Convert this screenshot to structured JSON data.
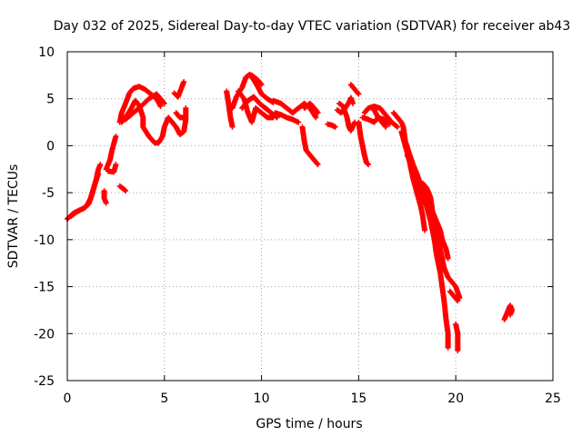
{
  "chart_data": {
    "type": "scatter",
    "title": "Day 032 of 2025, Sidereal Day-to-day VTEC variation (SDTVAR) for receiver ab43",
    "xlabel": "GPS time / hours",
    "ylabel": "SDTVAR / TECUs",
    "xlim": [
      0,
      25
    ],
    "ylim": [
      -25,
      10
    ],
    "xticks": [
      0,
      5,
      10,
      15,
      20,
      25
    ],
    "yticks": [
      10,
      5,
      0,
      -5,
      -10,
      -15,
      -20,
      -25
    ],
    "grid": true,
    "marker": "+",
    "color": "#ff0000",
    "series": [
      {
        "name": "ab43",
        "tracks": [
          [
            [
              0.0,
              -7.8
            ],
            [
              0.3,
              -7.2
            ],
            [
              0.6,
              -6.9
            ],
            [
              0.9,
              -6.6
            ],
            [
              1.1,
              -6.2
            ],
            [
              1.3,
              -5.0
            ],
            [
              1.5,
              -3.5
            ],
            [
              1.6,
              -2.5
            ],
            [
              1.7,
              -2.0
            ]
          ],
          [
            [
              0.2,
              -7.5
            ],
            [
              0.5,
              -7.0
            ],
            [
              0.8,
              -6.7
            ],
            [
              1.0,
              -6.4
            ],
            [
              1.2,
              -5.6
            ],
            [
              1.4,
              -4.2
            ],
            [
              1.6,
              -3.0
            ]
          ],
          [
            [
              1.9,
              -4.8
            ],
            [
              1.9,
              -5.6
            ],
            [
              2.0,
              -6.1
            ]
          ],
          [
            [
              2.0,
              -2.5
            ],
            [
              2.2,
              -1.5
            ],
            [
              2.3,
              -0.5
            ],
            [
              2.5,
              1.0
            ]
          ],
          [
            [
              2.1,
              -2.7
            ],
            [
              2.4,
              -2.8
            ],
            [
              2.5,
              -2.0
            ]
          ],
          [
            [
              2.7,
              -4.3
            ],
            [
              2.9,
              -4.6
            ],
            [
              3.0,
              -4.8
            ]
          ],
          [
            [
              2.7,
              2.5
            ],
            [
              2.8,
              3.5
            ],
            [
              3.0,
              4.5
            ],
            [
              3.2,
              5.6
            ],
            [
              3.4,
              6.1
            ],
            [
              3.7,
              6.3
            ],
            [
              4.0,
              6.0
            ],
            [
              4.3,
              5.5
            ],
            [
              4.6,
              5.0
            ],
            [
              4.8,
              4.2
            ]
          ],
          [
            [
              2.8,
              2.5
            ],
            [
              3.0,
              3.0
            ],
            [
              3.3,
              4.0
            ],
            [
              3.5,
              4.8
            ],
            [
              3.7,
              4.3
            ],
            [
              3.9,
              3.0
            ],
            [
              3.9,
              2.0
            ],
            [
              4.2,
              1.0
            ],
            [
              4.5,
              0.3
            ],
            [
              4.7,
              0.3
            ],
            [
              4.9,
              1.0
            ],
            [
              5.0,
              2.0
            ],
            [
              5.2,
              3.0
            ],
            [
              5.4,
              2.5
            ]
          ],
          [
            [
              3.0,
              2.8
            ],
            [
              3.4,
              3.5
            ],
            [
              3.8,
              4.2
            ],
            [
              4.2,
              5.0
            ],
            [
              4.6,
              5.5
            ],
            [
              5.0,
              4.5
            ]
          ],
          [
            [
              5.5,
              5.6
            ],
            [
              5.7,
              5.2
            ],
            [
              6.0,
              6.8
            ]
          ],
          [
            [
              5.4,
              2.5
            ],
            [
              5.6,
              2.0
            ],
            [
              5.8,
              1.2
            ],
            [
              6.0,
              1.5
            ],
            [
              6.1,
              2.8
            ],
            [
              6.1,
              4.0
            ]
          ],
          [
            [
              5.6,
              3.5
            ],
            [
              5.8,
              3.0
            ],
            [
              6.0,
              3.0
            ]
          ],
          [
            [
              8.2,
              5.8
            ],
            [
              8.3,
              4.5
            ],
            [
              8.4,
              3.0
            ],
            [
              8.5,
              2.0
            ]
          ],
          [
            [
              8.5,
              4.0
            ],
            [
              8.7,
              5.2
            ],
            [
              9.0,
              6.2
            ],
            [
              9.2,
              7.3
            ],
            [
              9.4,
              7.6
            ],
            [
              9.6,
              7.0
            ],
            [
              9.8,
              6.3
            ],
            [
              10.0,
              5.5
            ],
            [
              10.3,
              5.0
            ],
            [
              10.6,
              4.6
            ]
          ],
          [
            [
              8.8,
              5.8
            ],
            [
              9.1,
              5.0
            ],
            [
              9.3,
              3.5
            ],
            [
              9.5,
              2.5
            ],
            [
              9.7,
              4.0
            ],
            [
              10.0,
              3.5
            ],
            [
              10.3,
              3.0
            ],
            [
              10.6,
              3.0
            ]
          ],
          [
            [
              9.0,
              4.0
            ],
            [
              9.3,
              4.8
            ],
            [
              9.6,
              5.2
            ],
            [
              9.9,
              4.5
            ],
            [
              10.2,
              4.0
            ],
            [
              10.5,
              3.5
            ],
            [
              10.8,
              3.0
            ]
          ],
          [
            [
              9.5,
              7.5
            ],
            [
              9.8,
              7.0
            ],
            [
              10.0,
              6.5
            ]
          ],
          [
            [
              10.6,
              4.8
            ],
            [
              11.0,
              4.5
            ],
            [
              11.3,
              4.0
            ],
            [
              11.6,
              3.5
            ],
            [
              11.9,
              4.0
            ],
            [
              12.2,
              4.5
            ],
            [
              12.5,
              4.0
            ],
            [
              12.8,
              3.0
            ]
          ],
          [
            [
              10.7,
              3.5
            ],
            [
              11.0,
              3.3
            ],
            [
              11.3,
              3.0
            ],
            [
              11.6,
              2.8
            ],
            [
              11.9,
              2.5
            ]
          ],
          [
            [
              12.1,
              2.0
            ],
            [
              12.2,
              0.5
            ],
            [
              12.3,
              -0.5
            ],
            [
              12.5,
              -1.0
            ],
            [
              12.7,
              -1.5
            ],
            [
              12.9,
              -2.0
            ]
          ],
          [
            [
              12.2,
              4.0
            ],
            [
              12.5,
              4.5
            ],
            [
              12.8,
              3.8
            ],
            [
              12.9,
              3.5
            ]
          ],
          [
            [
              13.4,
              2.3
            ],
            [
              13.6,
              2.2
            ],
            [
              13.8,
              2.0
            ]
          ],
          [
            [
              13.9,
              3.8
            ],
            [
              14.1,
              3.5
            ],
            [
              14.3,
              4.0
            ],
            [
              14.5,
              4.6
            ],
            [
              14.6,
              5.1
            ],
            [
              14.7,
              4.5
            ]
          ],
          [
            [
              14.0,
              4.5
            ],
            [
              14.2,
              4.2
            ],
            [
              14.4,
              3.0
            ],
            [
              14.5,
              2.0
            ],
            [
              14.6,
              1.6
            ],
            [
              14.8,
              2.5
            ]
          ],
          [
            [
              14.6,
              6.5
            ],
            [
              14.8,
              6.0
            ],
            [
              15.0,
              5.5
            ]
          ],
          [
            [
              15.0,
              2.5
            ],
            [
              15.1,
              1.0
            ],
            [
              15.2,
              0.0
            ],
            [
              15.3,
              -1.0
            ],
            [
              15.4,
              -1.8
            ],
            [
              15.5,
              -2.0
            ]
          ],
          [
            [
              15.3,
              3.5
            ],
            [
              15.5,
              4.0
            ],
            [
              15.8,
              4.2
            ],
            [
              16.1,
              4.0
            ],
            [
              16.3,
              3.5
            ],
            [
              16.5,
              3.0
            ],
            [
              16.7,
              2.5
            ],
            [
              17.0,
              2.0
            ]
          ],
          [
            [
              15.2,
              3.0
            ],
            [
              15.5,
              2.8
            ],
            [
              15.8,
              2.5
            ],
            [
              16.0,
              3.0
            ],
            [
              16.3,
              2.8
            ],
            [
              16.6,
              2.3
            ]
          ],
          [
            [
              15.8,
              3.8
            ],
            [
              16.0,
              3.0
            ],
            [
              16.2,
              2.5
            ],
            [
              16.4,
              2.0
            ]
          ],
          [
            [
              16.8,
              3.5
            ],
            [
              17.0,
              3.0
            ],
            [
              17.2,
              2.5
            ],
            [
              17.3,
              2.0
            ],
            [
              17.4,
              0.5
            ],
            [
              17.6,
              -0.8
            ],
            [
              17.8,
              -2.0
            ],
            [
              18.0,
              -3.0
            ],
            [
              18.2,
              -4.2
            ],
            [
              18.4,
              -5.0
            ],
            [
              18.6,
              -6.0
            ],
            [
              18.8,
              -7.5
            ],
            [
              19.0,
              -9.0
            ],
            [
              19.2,
              -11.0
            ],
            [
              19.4,
              -13.0
            ],
            [
              19.6,
              -14.0
            ],
            [
              19.8,
              -14.5
            ],
            [
              20.0,
              -15.0
            ],
            [
              20.2,
              -16.2
            ]
          ],
          [
            [
              17.2,
              1.5
            ],
            [
              17.4,
              0.0
            ],
            [
              17.6,
              -1.5
            ],
            [
              17.8,
              -3.5
            ],
            [
              18.0,
              -5.0
            ],
            [
              18.2,
              -6.5
            ],
            [
              18.3,
              -7.5
            ],
            [
              18.4,
              -9.0
            ]
          ],
          [
            [
              17.5,
              -1.0
            ],
            [
              17.8,
              -2.5
            ],
            [
              18.0,
              -4.0
            ],
            [
              18.3,
              -5.5
            ],
            [
              18.5,
              -6.5
            ],
            [
              18.7,
              -8.0
            ],
            [
              18.9,
              -10.0
            ],
            [
              19.0,
              -11.5
            ],
            [
              19.2,
              -13.5
            ],
            [
              19.3,
              -15.0
            ],
            [
              19.4,
              -16.5
            ],
            [
              19.5,
              -18.5
            ],
            [
              19.6,
              -20.0
            ],
            [
              19.6,
              -21.5
            ]
          ],
          [
            [
              18.3,
              -4.0
            ],
            [
              18.5,
              -4.5
            ],
            [
              18.7,
              -5.5
            ],
            [
              18.8,
              -7.0
            ],
            [
              19.0,
              -8.0
            ],
            [
              19.2,
              -9.0
            ],
            [
              19.3,
              -10.0
            ],
            [
              19.5,
              -11.0
            ],
            [
              19.6,
              -12.0
            ]
          ],
          [
            [
              19.7,
              -15.5
            ],
            [
              19.9,
              -16.0
            ],
            [
              20.1,
              -16.5
            ]
          ],
          [
            [
              20.0,
              -19.0
            ],
            [
              20.1,
              -20.0
            ],
            [
              20.1,
              -21.0
            ],
            [
              20.1,
              -21.8
            ]
          ],
          [
            [
              22.5,
              -18.5
            ],
            [
              22.6,
              -18.0
            ],
            [
              22.7,
              -17.5
            ],
            [
              22.8,
              -17.0
            ],
            [
              22.9,
              -17.5
            ],
            [
              22.8,
              -18.0
            ]
          ]
        ]
      }
    ]
  }
}
